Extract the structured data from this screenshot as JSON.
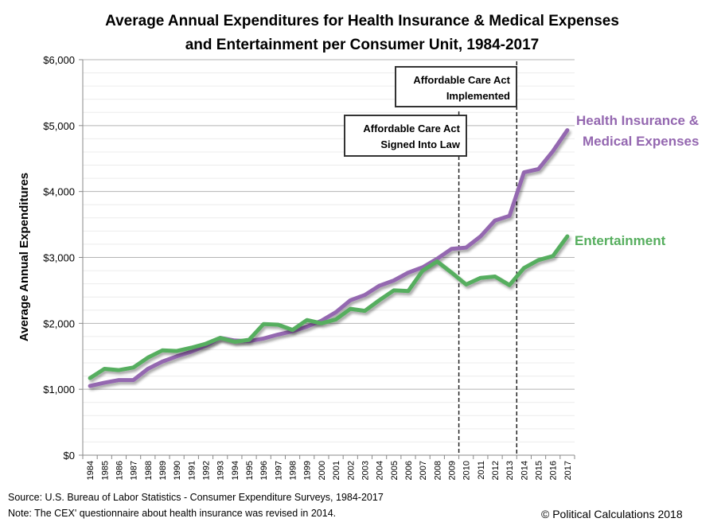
{
  "chart_data": {
    "type": "line",
    "title": "Average Annual Expenditures for Health Insurance & Medical Expenses",
    "title_line2": "and Entertainment per Consumer Unit, 1984-2017",
    "xlabel": "",
    "ylabel": "Average Annual Expenditures",
    "ylim": [
      0,
      6000
    ],
    "ytick_step": 1000,
    "minor_grid_step": 200,
    "yticks": [
      "$0",
      "$1,000",
      "$2,000",
      "$3,000",
      "$4,000",
      "$5,000",
      "$6,000"
    ],
    "grid": true,
    "legend": "direct labels at right end of lines",
    "categories": [
      "1984",
      "1985",
      "1986",
      "1987",
      "1988",
      "1989",
      "1990",
      "1991",
      "1992",
      "1993",
      "1994",
      "1995",
      "1996",
      "1997",
      "1998",
      "1999",
      "2000",
      "2001",
      "2002",
      "2003",
      "2004",
      "2005",
      "2006",
      "2007",
      "2008",
      "2009",
      "2010",
      "2011",
      "2012",
      "2013",
      "2014",
      "2015",
      "2016",
      "2017"
    ],
    "series": [
      {
        "name": "Health Insurance & Medical Expenses",
        "label_lines": [
          "Health Insurance &",
          "Medical Expenses"
        ],
        "color": "#9467b0",
        "values": [
          1050,
          1100,
          1140,
          1140,
          1310,
          1420,
          1500,
          1570,
          1660,
          1780,
          1740,
          1730,
          1770,
          1830,
          1880,
          1950,
          2040,
          2170,
          2350,
          2430,
          2570,
          2650,
          2770,
          2850,
          2980,
          3130,
          3150,
          3320,
          3560,
          3630,
          4290,
          4340,
          4610,
          4930
        ]
      },
      {
        "name": "Entertainment",
        "label_lines": [
          "Entertainment"
        ],
        "color": "#56ae5e",
        "values": [
          1170,
          1310,
          1290,
          1330,
          1480,
          1590,
          1580,
          1630,
          1690,
          1780,
          1720,
          1750,
          1990,
          1980,
          1900,
          2050,
          2000,
          2060,
          2220,
          2190,
          2350,
          2500,
          2490,
          2800,
          2940,
          2770,
          2590,
          2690,
          2710,
          2580,
          2840,
          2960,
          3020,
          3320
        ]
      }
    ],
    "annotations": [
      {
        "name": "aca-signed",
        "lines": [
          "Affordable Care Act",
          "Signed Into Law"
        ],
        "between": [
          "2009",
          "2010"
        ]
      },
      {
        "name": "aca-implemented",
        "lines": [
          "Affordable Care Act",
          "Implemented"
        ],
        "between": [
          "2013",
          "2014"
        ]
      }
    ]
  },
  "footer": {
    "source": "Source: U.S. Bureau of Labor Statistics - Consumer Expenditure Surveys, 1984-2017",
    "note": "Note: The CEX' questionnaire about health insurance was revised in 2014.",
    "copyright": "© Political Calculations 2018"
  }
}
